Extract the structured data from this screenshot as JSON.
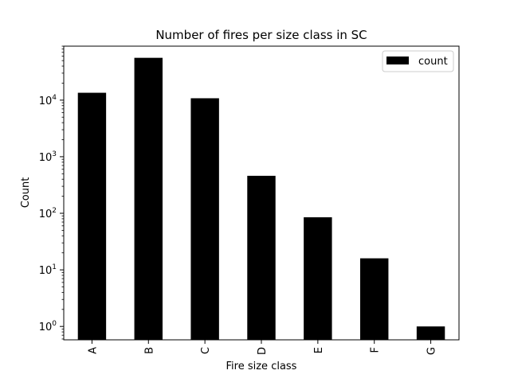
{
  "chart_data": {
    "type": "bar",
    "title": "Number of fires per size class in SC",
    "xlabel": "Fire size class",
    "ylabel": "Count",
    "yscale": "log",
    "ylim": [
      0.58,
      90000
    ],
    "categories": [
      "A",
      "B",
      "C",
      "D",
      "E",
      "F",
      "G"
    ],
    "series": [
      {
        "name": "count",
        "values": [
          13500,
          56000,
          10800,
          460,
          85,
          16,
          1
        ]
      }
    ],
    "y_major_ticks": [
      1,
      10,
      100,
      1000,
      10000
    ],
    "y_tick_labels": [
      {
        "base": "10",
        "exp": "0"
      },
      {
        "base": "10",
        "exp": "1"
      },
      {
        "base": "10",
        "exp": "2"
      },
      {
        "base": "10",
        "exp": "3"
      },
      {
        "base": "10",
        "exp": "4"
      }
    ],
    "legend": {
      "position": "top-right",
      "label": "count"
    },
    "grid": false,
    "colors": {
      "bar": "#000000",
      "axis": "#000000",
      "background": "#ffffff"
    }
  }
}
